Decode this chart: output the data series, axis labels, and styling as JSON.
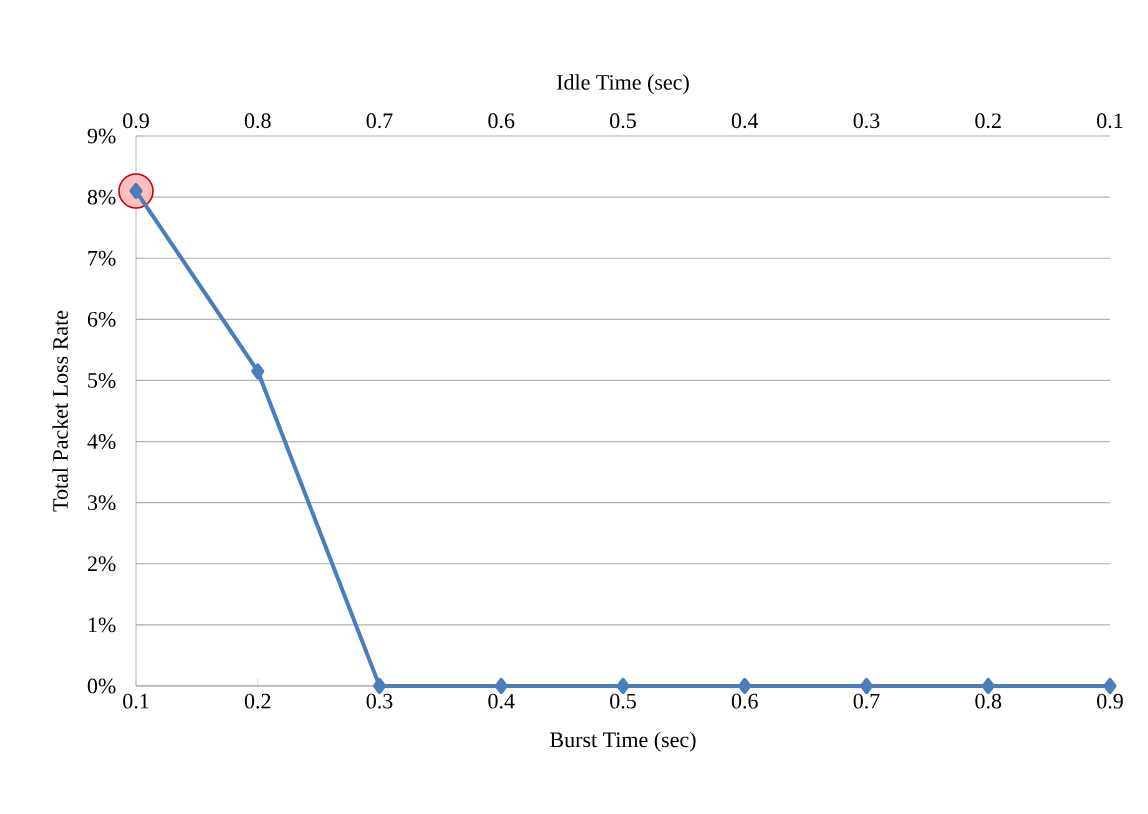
{
  "chart_data": {
    "type": "line",
    "xlabel": "Burst Time (sec)",
    "x2label": "Idle Time (sec)",
    "ylabel": "Total Packet Loss Rate",
    "xlim": [
      0.1,
      0.9
    ],
    "xticks": [
      0.1,
      0.2,
      0.3,
      0.4,
      0.5,
      0.6,
      0.7,
      0.8,
      0.9
    ],
    "x2lim": [
      0.9,
      0.1
    ],
    "x2ticks": [
      0.9,
      0.8,
      0.7,
      0.6,
      0.5,
      0.4,
      0.3,
      0.2,
      0.1
    ],
    "ylim": [
      0,
      9
    ],
    "yticks": [
      {
        "value": 0,
        "label": "0%"
      },
      {
        "value": 1,
        "label": "1%"
      },
      {
        "value": 2,
        "label": "2%"
      },
      {
        "value": 3,
        "label": "3%"
      },
      {
        "value": 4,
        "label": "4%"
      },
      {
        "value": 5,
        "label": "5%"
      },
      {
        "value": 6,
        "label": "6%"
      },
      {
        "value": 7,
        "label": "7%"
      },
      {
        "value": 8,
        "label": "8%"
      },
      {
        "value": 9,
        "label": "9%"
      }
    ],
    "grid": "y",
    "marker": "diamond",
    "line_style": "solid",
    "series": [
      {
        "color": "#4a7ebb",
        "x": [
          0.1,
          0.2,
          0.3,
          0.4,
          0.5,
          0.6,
          0.7,
          0.8,
          0.9
        ],
        "values": [
          8.1,
          5.15,
          0,
          0,
          0,
          0,
          0,
          0,
          0
        ]
      }
    ]
  }
}
